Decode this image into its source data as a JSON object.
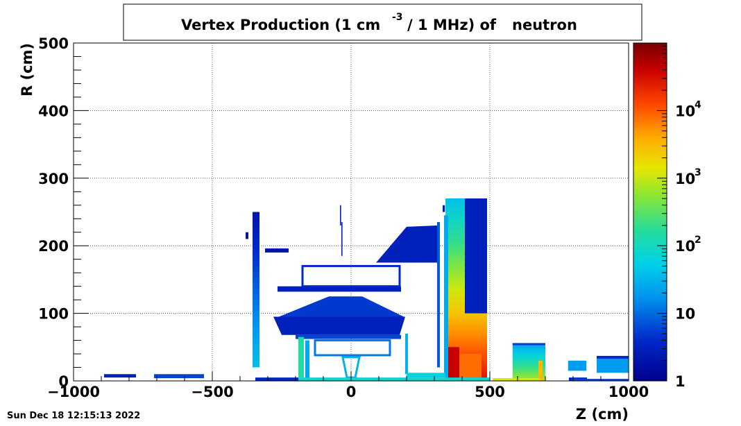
{
  "chart_data": {
    "type": "heatmap",
    "title_main": "Vertex Production (1 cm",
    "title_exp": "-3",
    "title_tail": "/ 1 MHz) of",
    "title_particle": "neutron",
    "xlabel": "Z (cm)",
    "ylabel": "R (cm)",
    "xlim": [
      -1000,
      1000
    ],
    "ylim": [
      0,
      500
    ],
    "x_ticks": [
      -1000,
      -500,
      0,
      500,
      1000
    ],
    "x_tick_labels": [
      "−1000",
      "−500",
      "0",
      "500",
      "1000"
    ],
    "y_ticks": [
      0,
      100,
      200,
      300,
      400,
      500
    ],
    "y_tick_labels": [
      "0",
      "100",
      "200",
      "300",
      "400",
      "500"
    ],
    "grid": true,
    "log_z": true,
    "z_range": [
      1,
      100000
    ],
    "colorbar_ticks": [
      {
        "value": 1,
        "base": "1",
        "exp": ""
      },
      {
        "value": 10,
        "base": "10",
        "exp": ""
      },
      {
        "value": 100,
        "base": "10",
        "exp": "2"
      },
      {
        "value": 1000,
        "base": "10",
        "exp": "3"
      },
      {
        "value": 10000,
        "base": "10",
        "exp": "4"
      }
    ],
    "regions": [
      {
        "shape": "rect",
        "z0": 340,
        "z1": 490,
        "r0": 0,
        "r1": 270,
        "gradient": "vertical",
        "v_bottom": 30000,
        "v_top": 40
      },
      {
        "shape": "rect",
        "z0": 340,
        "z1": 390,
        "r0": 0,
        "r1": 50,
        "v": 40000
      },
      {
        "shape": "rect",
        "z0": 390,
        "z1": 470,
        "r0": 0,
        "r1": 40,
        "v": 8000
      },
      {
        "shape": "rect",
        "z0": 410,
        "z1": 490,
        "r0": 100,
        "r1": 270,
        "v": 3
      },
      {
        "shape": "rect",
        "z0": 335,
        "z1": 350,
        "r0": 0,
        "r1": 245,
        "v": 25
      },
      {
        "shape": "rect",
        "z0": 582,
        "z1": 700,
        "r0": 0,
        "r1": 55,
        "gradient": "vertical",
        "v_bottom": 800,
        "v_top": 20
      },
      {
        "shape": "rect",
        "z0": 582,
        "z1": 700,
        "r0": 53,
        "r1": 56,
        "v": 5
      },
      {
        "shape": "rect",
        "z0": 675,
        "z1": 690,
        "r0": 0,
        "r1": 30,
        "v": 3000
      },
      {
        "shape": "rect",
        "z0": 782,
        "z1": 848,
        "r0": 15,
        "r1": 30,
        "v": 20
      },
      {
        "shape": "rect",
        "z0": 785,
        "z1": 850,
        "r0": 0,
        "r1": 5,
        "v": 4
      },
      {
        "shape": "rect",
        "z0": 885,
        "z1": 1000,
        "r0": 12,
        "r1": 37,
        "v": 20
      },
      {
        "shape": "rect",
        "z0": 885,
        "z1": 1000,
        "r0": 33,
        "r1": 37,
        "v": 4
      },
      {
        "shape": "rect",
        "z0": -355,
        "z1": -330,
        "r0": 20,
        "r1": 250,
        "gradient": "vertical",
        "v_bottom": 40,
        "v_top": 2
      },
      {
        "shape": "rect",
        "z0": -710,
        "z1": -530,
        "r0": 4,
        "r1": 10,
        "v": 6
      },
      {
        "shape": "rect",
        "z0": -890,
        "z1": -775,
        "r0": 5,
        "r1": 10,
        "v": 3
      },
      {
        "shape": "rect",
        "z0": -310,
        "z1": -225,
        "r0": 190,
        "r1": 196,
        "v": 2
      },
      {
        "shape": "rect",
        "z0": -265,
        "z1": 180,
        "r0": 132,
        "r1": 140,
        "v": 3
      },
      {
        "shape": "rect",
        "z0": -175,
        "z1": 175,
        "r0": 140,
        "r1": 170,
        "v": 4,
        "hollow": true
      },
      {
        "shape": "poly",
        "pts": [
          [
            -280,
            95
          ],
          [
            195,
            95
          ],
          [
            175,
            68
          ],
          [
            -250,
            68
          ]
        ],
        "v": 3
      },
      {
        "shape": "poly",
        "pts": [
          [
            -260,
            95
          ],
          [
            190,
            95
          ],
          [
            40,
            125
          ],
          [
            -80,
            125
          ]
        ],
        "v": 5
      },
      {
        "shape": "poly",
        "pts": [
          [
            90,
            175
          ],
          [
            310,
            175
          ],
          [
            310,
            230
          ],
          [
            200,
            228
          ]
        ],
        "v": 3
      },
      {
        "shape": "rect",
        "z0": 310,
        "z1": 320,
        "r0": 20,
        "r1": 235,
        "v": 8
      },
      {
        "shape": "rect",
        "z0": -200,
        "z1": 180,
        "r0": 62,
        "r1": 68,
        "v": 6
      },
      {
        "shape": "rect",
        "z0": -190,
        "z1": -170,
        "r0": 5,
        "r1": 65,
        "v": 150
      },
      {
        "shape": "rect",
        "z0": -165,
        "z1": -150,
        "r0": 0,
        "r1": 60,
        "v": 25
      },
      {
        "shape": "rect",
        "z0": -130,
        "z1": 140,
        "r0": 38,
        "r1": 60,
        "v": 12,
        "hollow": true
      },
      {
        "shape": "poly",
        "pts": [
          [
            -30,
            35
          ],
          [
            30,
            35
          ],
          [
            15,
            5
          ],
          [
            -15,
            5
          ]
        ],
        "v": 30,
        "hollow": true
      },
      {
        "shape": "rect",
        "z0": 195,
        "z1": 205,
        "r0": 10,
        "r1": 70,
        "v": 30
      },
      {
        "shape": "rect",
        "z0": -200,
        "z1": 500,
        "r0": 0,
        "r1": 5,
        "v": 80
      },
      {
        "shape": "rect",
        "z0": 200,
        "z1": 340,
        "r0": 5,
        "r1": 12,
        "v": 60
      },
      {
        "shape": "rect",
        "z0": 510,
        "z1": 680,
        "r0": 0,
        "r1": 4,
        "v": 1200
      },
      {
        "shape": "rect",
        "z0": 795,
        "z1": 1000,
        "r0": 0,
        "r1": 3,
        "v": 6
      },
      {
        "shape": "rect",
        "z0": -345,
        "z1": -190,
        "r0": 0,
        "r1": 5,
        "v": 4
      },
      {
        "shape": "rect",
        "z0": -380,
        "z1": -370,
        "r0": 210,
        "r1": 220,
        "v": 2
      },
      {
        "shape": "rect",
        "z0": -40,
        "z1": -36,
        "r0": 230,
        "r1": 260,
        "v": 3
      },
      {
        "shape": "rect",
        "z0": -35,
        "z1": -31,
        "r0": 185,
        "r1": 235,
        "v": 3
      },
      {
        "shape": "rect",
        "z0": 330,
        "z1": 338,
        "r0": 250,
        "r1": 260,
        "v": 3
      }
    ],
    "timestamp": "Sun Dec 18 12:15:13 2022"
  }
}
